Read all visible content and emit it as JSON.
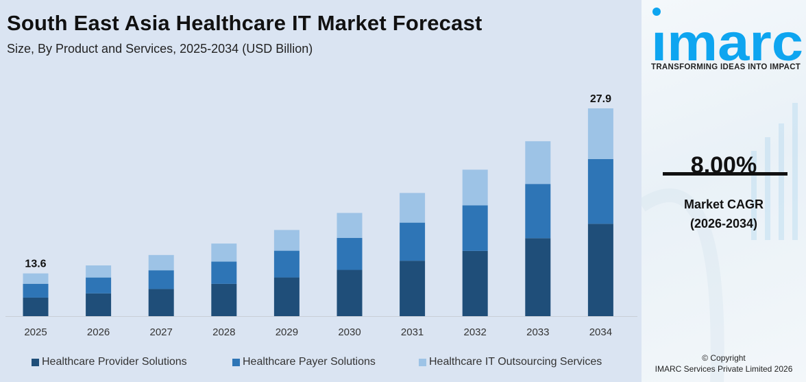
{
  "header": {
    "title": "South East Asia Healthcare IT Market Forecast",
    "subtitle": "Size, By Product and Services, 2025-2034 (USD Billion)"
  },
  "chart_data": {
    "type": "bar",
    "stacked": true,
    "title": "South East Asia Healthcare IT Market Forecast",
    "subtitle": "Size, By Product and Services, 2025-2034 (USD Billion)",
    "xlabel": "",
    "ylabel": "",
    "y_axis_visible": false,
    "grid": false,
    "legend_placement": "bottom",
    "categories": [
      "2025",
      "2026",
      "2027",
      "2028",
      "2029",
      "2030",
      "2031",
      "2032",
      "2033",
      "2034"
    ],
    "series": [
      {
        "name": "Healthcare Provider Solutions",
        "color": "#1f4e79",
        "values": [
          5.9,
          6.6,
          7.1,
          7.7,
          8.4,
          9.1,
          9.9,
          10.6,
          11.5,
          12.4
        ]
      },
      {
        "name": "Healthcare Payer Solutions",
        "color": "#2e75b6",
        "values": [
          4.4,
          4.6,
          4.9,
          5.3,
          5.8,
          6.3,
          6.8,
          7.4,
          8.0,
          8.7
        ]
      },
      {
        "name": "Healthcare IT Outsourcing Services",
        "color": "#9dc3e6",
        "values": [
          3.3,
          3.5,
          4.0,
          4.3,
          4.5,
          4.9,
          5.3,
          5.8,
          6.3,
          6.8
        ]
      }
    ],
    "data_labels": [
      {
        "category": "2025",
        "text": "13.6"
      },
      {
        "category": "2034",
        "text": "27.9"
      }
    ]
  },
  "sidebar": {
    "logo_text": "imarc",
    "tagline": "TRANSFORMING IDEAS INTO IMPACT",
    "cagr_value": "8.00%",
    "cagr_label": "Market CAGR",
    "cagr_period": "(2026-2034)",
    "copyright_line1": "© Copyright",
    "copyright_line2": "IMARC Services Private Limited 2026",
    "brand_color": "#0ea5f0"
  }
}
